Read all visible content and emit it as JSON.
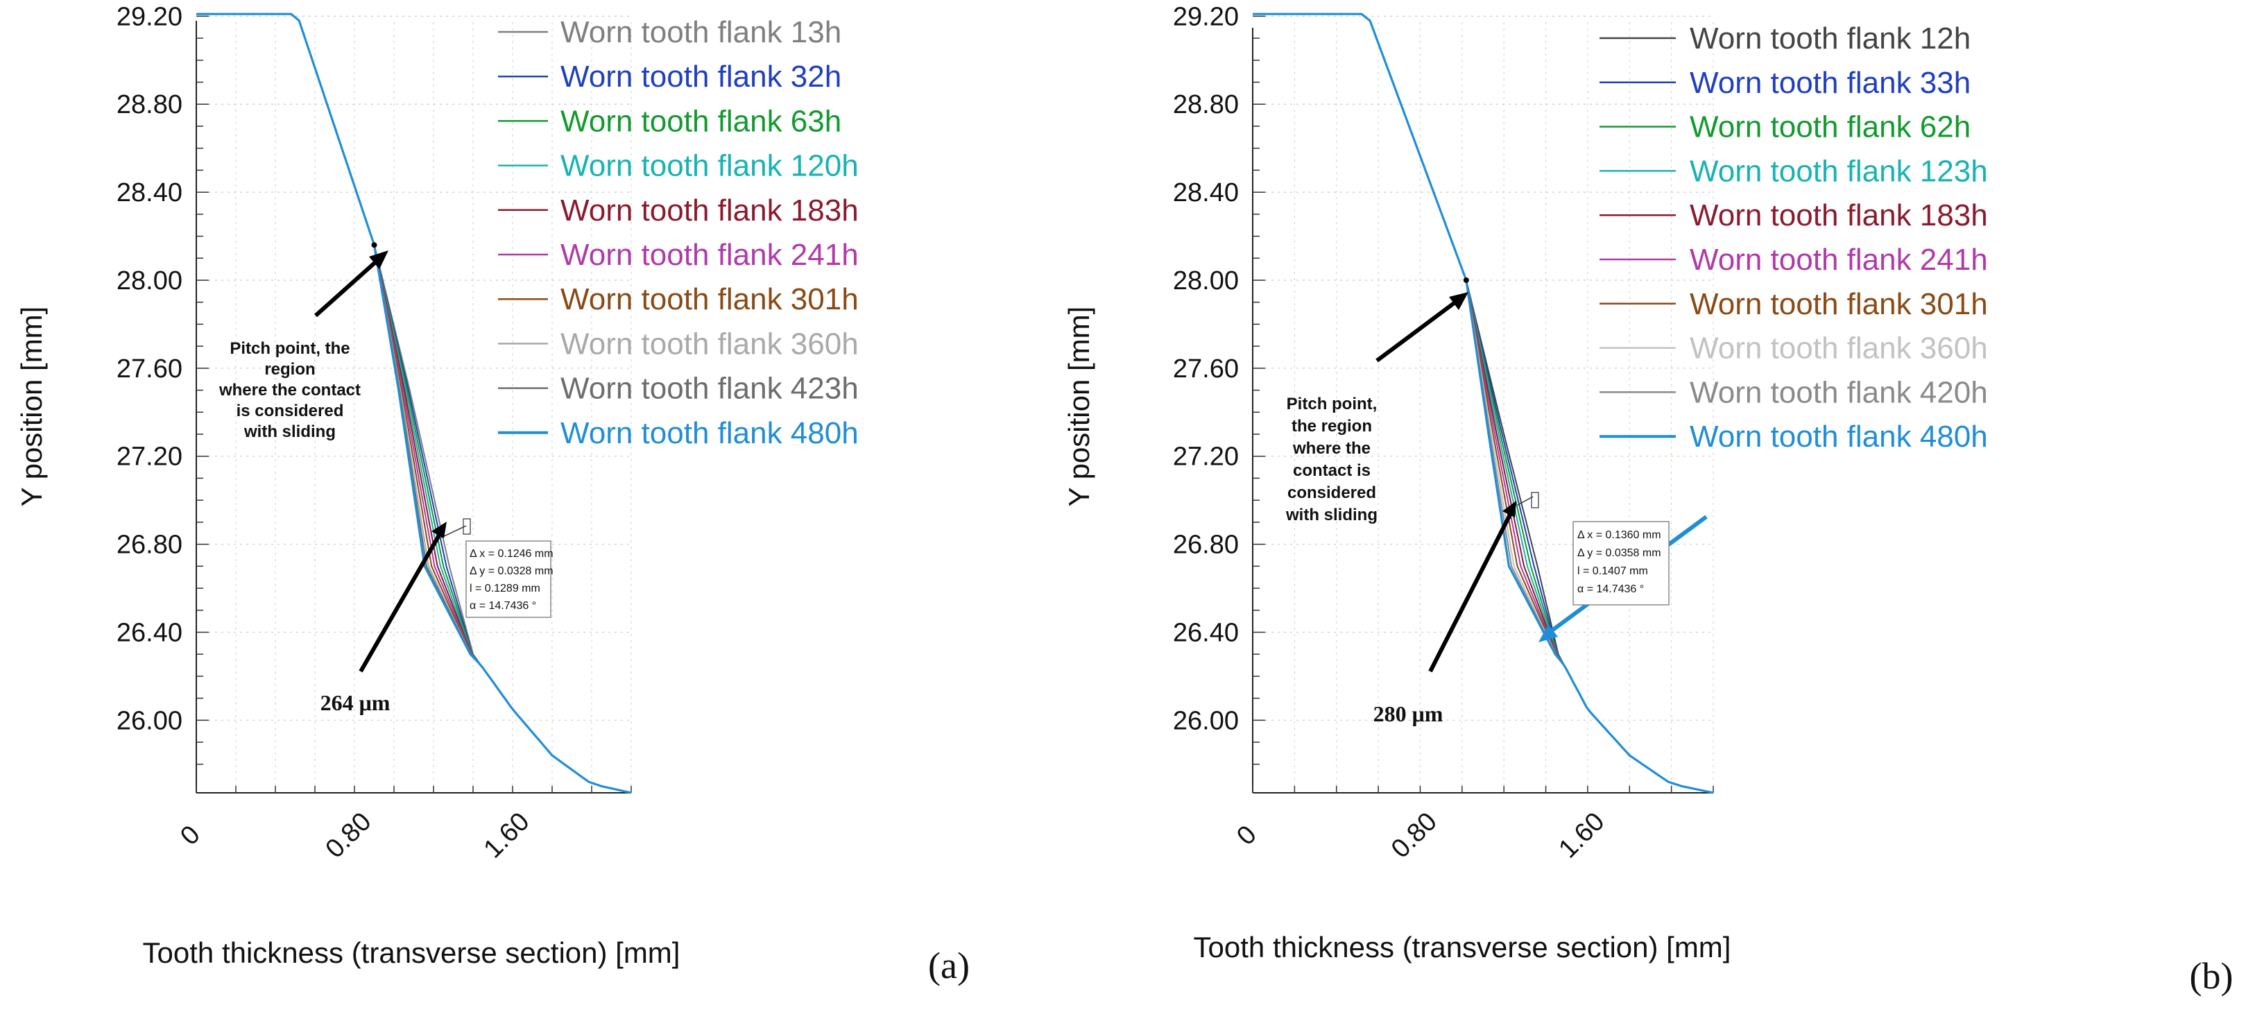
{
  "figure": {
    "panels": [
      "(a)",
      "(b)"
    ]
  },
  "chart_data": [
    {
      "type": "line",
      "panel_label": "(a)",
      "xlabel": "Tooth thickness (transverse section) [mm]",
      "ylabel": "Y position [mm]",
      "xlim": [
        0,
        2.2
      ],
      "ylim": [
        25.67,
        29.22
      ],
      "x_ticks": [
        0,
        0.8,
        1.6
      ],
      "x_tick_labels": [
        "0",
        "0.80",
        "1.60"
      ],
      "y_ticks": [
        26.0,
        26.4,
        26.8,
        27.2,
        27.6,
        28.0,
        28.4,
        28.8,
        29.2
      ],
      "y_tick_labels": [
        "26.00",
        "26.40",
        "26.80",
        "27.20",
        "27.60",
        "28.00",
        "28.40",
        "28.80",
        "29.20"
      ],
      "grid": true,
      "legend_position": "top-right",
      "base_profile": {
        "x": [
          0,
          0.48,
          0.52,
          0.9,
          1.08,
          1.28,
          1.4,
          1.6,
          1.8,
          2.0,
          2.2
        ],
        "y": [
          29.21,
          29.21,
          29.18,
          28.16,
          27.5,
          26.7,
          26.3,
          26.05,
          25.84,
          25.71,
          25.67
        ]
      },
      "series": [
        {
          "name": "Worn tooth flank 13h",
          "color": "#7f7f7f",
          "max_wear_mm": 0.0
        },
        {
          "name": "Worn tooth flank 32h",
          "color": "#1f3fbf",
          "max_wear_mm": 0.015
        },
        {
          "name": "Worn tooth flank 63h",
          "color": "#129a2e",
          "max_wear_mm": 0.03
        },
        {
          "name": "Worn tooth flank 120h",
          "color": "#17b3b3",
          "max_wear_mm": 0.045
        },
        {
          "name": "Worn tooth flank 183h",
          "color": "#8c1a2e",
          "max_wear_mm": 0.06
        },
        {
          "name": "Worn tooth flank 241h",
          "color": "#b03aa8",
          "max_wear_mm": 0.075
        },
        {
          "name": "Worn tooth flank 301h",
          "color": "#8a4a14",
          "max_wear_mm": 0.09
        },
        {
          "name": "Worn tooth flank 360h",
          "color": "#a9a9a9",
          "max_wear_mm": 0.105
        },
        {
          "name": "Worn tooth flank 423h",
          "color": "#6d6d6d",
          "max_wear_mm": 0.115
        },
        {
          "name": "Worn tooth flank 480h",
          "color": "#1f8ed6",
          "max_wear_mm": 0.125
        }
      ],
      "pitch_point": {
        "x": 0.9,
        "y": 28.16
      },
      "annotation_text": [
        "Pitch point, the",
        "region",
        "where the contact",
        "is considered",
        "with sliding"
      ],
      "measure_box": [
        "Δ x = 0.1246 mm",
        "Δ y = 0.0328 mm",
        "l = 0.1289 mm",
        "α = 14.7436 °"
      ],
      "depth_label": "264 μm"
    },
    {
      "type": "line",
      "panel_label": "(b)",
      "xlabel": "Tooth thickness (transverse section) [mm]",
      "ylabel": "Y position [mm]",
      "xlim": [
        0,
        2.2
      ],
      "ylim": [
        25.67,
        29.22
      ],
      "x_ticks": [
        0,
        0.8,
        1.6
      ],
      "x_tick_labels": [
        "0",
        "0.80",
        "1.60"
      ],
      "y_ticks": [
        26.0,
        26.4,
        26.8,
        27.2,
        27.6,
        28.0,
        28.4,
        28.8,
        29.2
      ],
      "y_tick_labels": [
        "26.00",
        "26.40",
        "26.80",
        "27.20",
        "27.60",
        "28.00",
        "28.40",
        "28.80",
        "29.20"
      ],
      "grid": true,
      "legend_position": "top-right",
      "base_profile": {
        "x": [
          0,
          0.52,
          0.56,
          1.02,
          1.2,
          1.36,
          1.46,
          1.6,
          1.8,
          2.0,
          2.2
        ],
        "y": [
          29.21,
          29.21,
          29.18,
          28.0,
          27.3,
          26.7,
          26.3,
          26.05,
          25.84,
          25.71,
          25.67
        ]
      },
      "series": [
        {
          "name": "Worn tooth flank 12h",
          "color": "#444444",
          "max_wear_mm": 0.0
        },
        {
          "name": "Worn tooth flank 33h",
          "color": "#1f3fbf",
          "max_wear_mm": 0.016
        },
        {
          "name": "Worn tooth flank 62h",
          "color": "#129a2e",
          "max_wear_mm": 0.032
        },
        {
          "name": "Worn tooth flank 123h",
          "color": "#17b3b3",
          "max_wear_mm": 0.048
        },
        {
          "name": "Worn tooth flank 183h",
          "color": "#8c1a2e",
          "max_wear_mm": 0.064
        },
        {
          "name": "Worn tooth flank 241h",
          "color": "#b03aa8",
          "max_wear_mm": 0.08
        },
        {
          "name": "Worn tooth flank 301h",
          "color": "#8a4a14",
          "max_wear_mm": 0.096
        },
        {
          "name": "Worn tooth flank 360h",
          "color": "#c2c2c2",
          "max_wear_mm": 0.112
        },
        {
          "name": "Worn tooth flank 420h",
          "color": "#8a8a8a",
          "max_wear_mm": 0.124
        },
        {
          "name": "Worn tooth flank 480h",
          "color": "#1f8ed6",
          "max_wear_mm": 0.136
        }
      ],
      "pitch_point": {
        "x": 1.02,
        "y": 28.0
      },
      "annotation_text": [
        "Pitch point,",
        "the region",
        "where the",
        "contact is",
        "considered",
        "with sliding"
      ],
      "measure_box": [
        "Δ x = 0.1360 mm",
        "Δ y = 0.0358 mm",
        "l = 0.1407 mm",
        "α = 14.7436 °"
      ],
      "depth_label": "280 μm"
    }
  ]
}
